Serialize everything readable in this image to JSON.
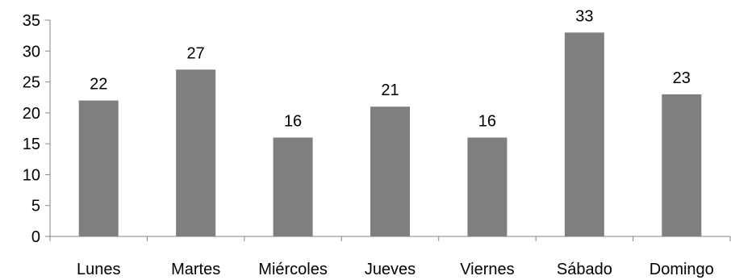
{
  "chart_data": {
    "type": "bar",
    "categories": [
      "Lunes",
      "Martes",
      "Miércoles",
      "Jueves",
      "Viernes",
      "Sábado",
      "Domingo"
    ],
    "values": [
      22,
      27,
      16,
      21,
      16,
      33,
      23
    ],
    "data_labels": [
      "22",
      "27",
      "16",
      "21",
      "16",
      "33",
      "23"
    ],
    "yticks": [
      "0",
      "5",
      "10",
      "15",
      "20",
      "25",
      "30",
      "35"
    ],
    "ylim": [
      0,
      35
    ],
    "title": "",
    "xlabel": "",
    "ylabel": "",
    "grid": false,
    "legend": "none",
    "bar_color": "#7f7f7f",
    "axis_color": "#868686"
  }
}
